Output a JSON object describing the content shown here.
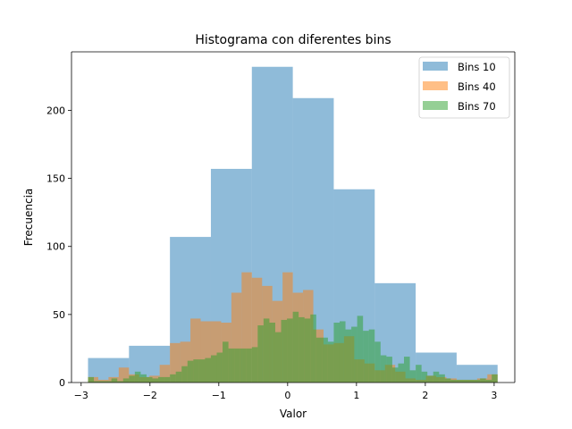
{
  "chart_data": {
    "type": "histogram",
    "title": "Histograma con diferentes bins",
    "xlabel": "Valor",
    "ylabel": "Frecuencia",
    "xlim": [
      -3.14,
      3.3
    ],
    "ylim": [
      0,
      243
    ],
    "xticks": [
      -3,
      -2,
      -1,
      0,
      1,
      2,
      3
    ],
    "yticks": [
      0,
      50,
      100,
      150,
      200
    ],
    "grid": false,
    "legend_position": "upper right",
    "series": [
      {
        "name": "Bins 10",
        "color": "#1f77b4",
        "alpha": 0.5,
        "bin_start": -2.9,
        "bin_end": 3.05,
        "counts": [
          18,
          27,
          107,
          157,
          232,
          209,
          142,
          73,
          22,
          13
        ]
      },
      {
        "name": "Bins 40",
        "color": "#ff7f0e",
        "alpha": 0.5,
        "bin_start": -2.9,
        "bin_end": 3.05,
        "counts": [
          4,
          2,
          4,
          11,
          6,
          4,
          5,
          13,
          29,
          30,
          47,
          45,
          45,
          44,
          66,
          81,
          77,
          71,
          60,
          81,
          66,
          68,
          39,
          28,
          29,
          34,
          17,
          14,
          9,
          13,
          8,
          3,
          2,
          5,
          4,
          3,
          2,
          2,
          3,
          6
        ]
      },
      {
        "name": "Bins 70",
        "color": "#2ca02c",
        "alpha": 0.5,
        "bin_start": -2.9,
        "bin_end": 3.05,
        "counts": [
          4,
          1,
          1,
          1,
          3,
          1,
          3,
          5,
          8,
          6,
          4,
          3,
          4,
          4,
          6,
          8,
          12,
          16,
          17,
          17,
          18,
          20,
          22,
          30,
          25,
          25,
          25,
          25,
          26,
          42,
          47,
          44,
          37,
          46,
          47,
          52,
          48,
          47,
          50,
          33,
          33,
          30,
          44,
          45,
          39,
          41,
          49,
          38,
          39,
          30,
          20,
          19,
          11,
          14,
          19,
          9,
          13,
          8,
          5,
          8,
          6,
          3,
          2,
          2,
          2,
          2,
          2,
          3,
          2,
          6
        ]
      }
    ]
  }
}
